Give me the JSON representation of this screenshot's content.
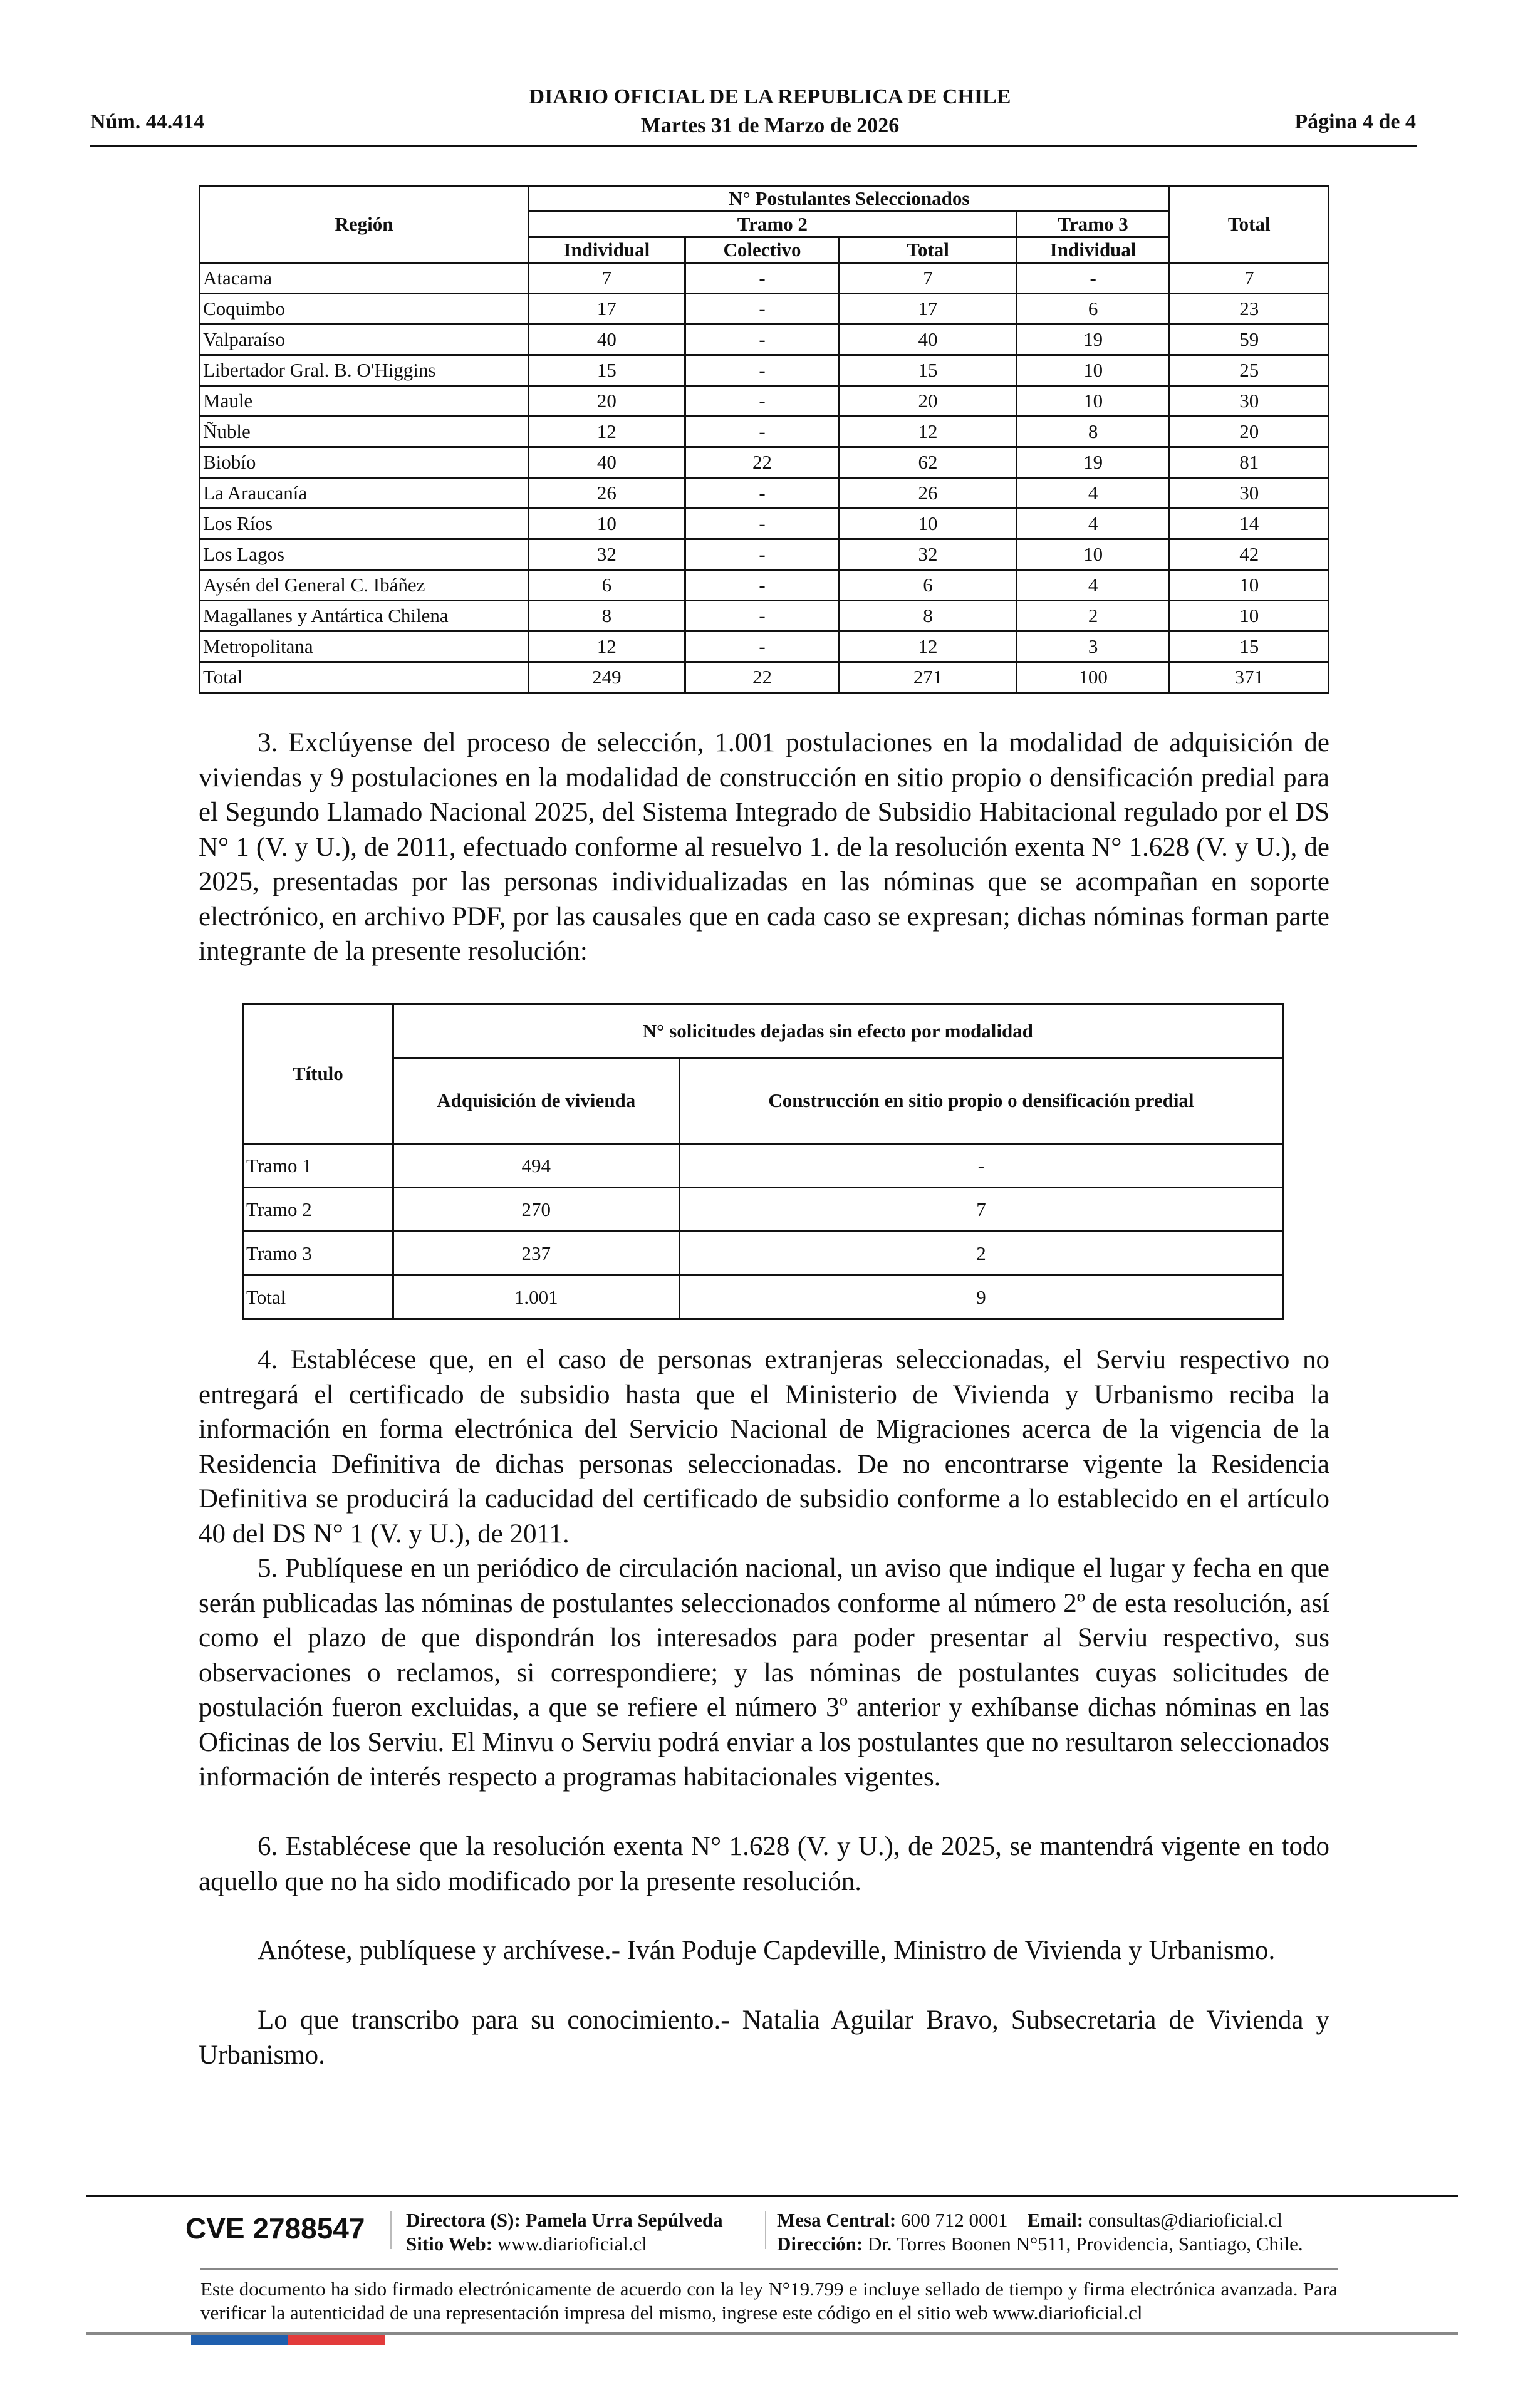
{
  "header": {
    "publication": "DIARIO OFICIAL DE LA REPUBLICA DE CHILE",
    "number": "Núm. 44.414",
    "date": "Martes 31 de Marzo de 2026",
    "page": "Página 4 de 4"
  },
  "table1": {
    "headers": {
      "region": "Región",
      "group": "N° Postulantes Seleccionados",
      "tramo2": "Tramo 2",
      "tramo3": "Tramo 3",
      "total": "Total",
      "individual": "Individual",
      "colectivo": "Colectivo",
      "subtotal": "Total",
      "individual3": "Individual"
    },
    "rows": [
      [
        "Atacama",
        "7",
        "-",
        "7",
        "-",
        "7"
      ],
      [
        "Coquimbo",
        "17",
        "-",
        "17",
        "6",
        "23"
      ],
      [
        "Valparaíso",
        "40",
        "-",
        "40",
        "19",
        "59"
      ],
      [
        "Libertador Gral. B. O'Higgins",
        "15",
        "-",
        "15",
        "10",
        "25"
      ],
      [
        "Maule",
        "20",
        "-",
        "20",
        "10",
        "30"
      ],
      [
        "Ñuble",
        "12",
        "-",
        "12",
        "8",
        "20"
      ],
      [
        "Biobío",
        "40",
        "22",
        "62",
        "19",
        "81"
      ],
      [
        "La Araucanía",
        "26",
        "-",
        "26",
        "4",
        "30"
      ],
      [
        "Los Ríos",
        "10",
        "-",
        "10",
        "4",
        "14"
      ],
      [
        "Los Lagos",
        "32",
        "-",
        "32",
        "10",
        "42"
      ],
      [
        "Aysén del General C. Ibáñez",
        "6",
        "-",
        "6",
        "4",
        "10"
      ],
      [
        "Magallanes y Antártica Chilena",
        "8",
        "-",
        "8",
        "2",
        "10"
      ],
      [
        "Metropolitana",
        "12",
        "-",
        "12",
        "3",
        "15"
      ],
      [
        "Total",
        "249",
        "22",
        "271",
        "100",
        "371"
      ]
    ]
  },
  "para3": "3. Exclúyense del proceso de selección, 1.001 postulaciones en la modalidad de adquisición de viviendas y 9 postulaciones en la modalidad de construcción en sitio propio o densificación predial para el Segundo Llamado Nacional 2025, del Sistema Integrado de Subsidio Habitacional regulado por el DS N° 1 (V. y U.), de 2011, efectuado conforme al resuelvo 1. de la resolución exenta N° 1.628 (V. y U.), de 2025, presentadas por las personas individualizadas en las nóminas que se acompañan en soporte electrónico, en archivo PDF, por las causales que en cada caso se expresan; dichas nóminas forman parte integrante de la presente resolución:",
  "table2": {
    "headers": {
      "titulo": "Título",
      "group": "N° solicitudes dejadas sin efecto por modalidad",
      "adquisicion": "Adquisición de vivienda",
      "construccion": "Construcción en sitio propio o densificación predial"
    },
    "rows": [
      [
        "Tramo 1",
        "494",
        "-"
      ],
      [
        "Tramo 2",
        "270",
        "7"
      ],
      [
        "Tramo 3",
        "237",
        "2"
      ],
      [
        "Total",
        "1.001",
        "9"
      ]
    ]
  },
  "para4": "4. Establécese que, en el caso de personas extranjeras seleccionadas, el Serviu respectivo no entregará el certificado de subsidio hasta que el Ministerio de Vivienda y Urbanismo reciba la información en forma electrónica del Servicio Nacional de Migraciones acerca de la vigencia de la Residencia Definitiva de dichas personas seleccionadas. De no encontrarse vigente la Residencia Definitiva se producirá la caducidad del certificado de subsidio conforme a lo establecido en el artículo 40 del DS N° 1 (V. y U.), de 2011.",
  "para5": "5. Publíquese en un periódico de circulación nacional, un aviso que indique el lugar y fecha en que serán publicadas las nóminas de postulantes seleccionados conforme al número 2º de esta resolución, así como el plazo de que dispondrán los interesados para poder presentar al Serviu respectivo, sus observaciones o reclamos, si correspondiere; y las nóminas de postulantes cuyas solicitudes de postulación fueron excluidas, a que se refiere el número 3º anterior y exhíbanse dichas nóminas en las Oficinas de los Serviu. El Minvu o Serviu podrá enviar a los postulantes que no resultaron seleccionados información de interés respecto a programas habitacionales vigentes.",
  "para6": "6. Establécese que la resolución exenta N° 1.628 (V. y U.), de 2025, se mantendrá vigente en todo aquello que no ha sido modificado por la presente resolución.",
  "signoff1": "Anótese, publíquese y archívese.- Iván Poduje Capdeville, Ministro de Vivienda y Urbanismo.",
  "signoff2": "Lo que transcribo para su conocimiento.- Natalia Aguilar Bravo, Subsecretaria de Vivienda y Urbanismo.",
  "footer": {
    "cve": "CVE 2788547",
    "director_label": "Directora (S):",
    "director": "Pamela Urra Sepúlveda",
    "web_label": "Sitio Web:",
    "web": "www.diarioficial.cl",
    "phone_label": "Mesa Central:",
    "phone": "600 712 0001",
    "email_label": "Email:",
    "email": "consultas@diarioficial.cl",
    "address_label": "Dirección:",
    "address": "Dr. Torres Boonen N°511, Providencia, Santiago, Chile.",
    "notice": "Este documento ha sido firmado electrónicamente de acuerdo con la ley N°19.799 e incluye sellado de tiempo y firma electrónica avanzada. Para verificar la autenticidad de una representación impresa del mismo, ingrese este código en el sitio web www.diarioficial.cl",
    "flag_colors": {
      "blue": "#1f5fae",
      "red": "#e23b3b"
    }
  }
}
